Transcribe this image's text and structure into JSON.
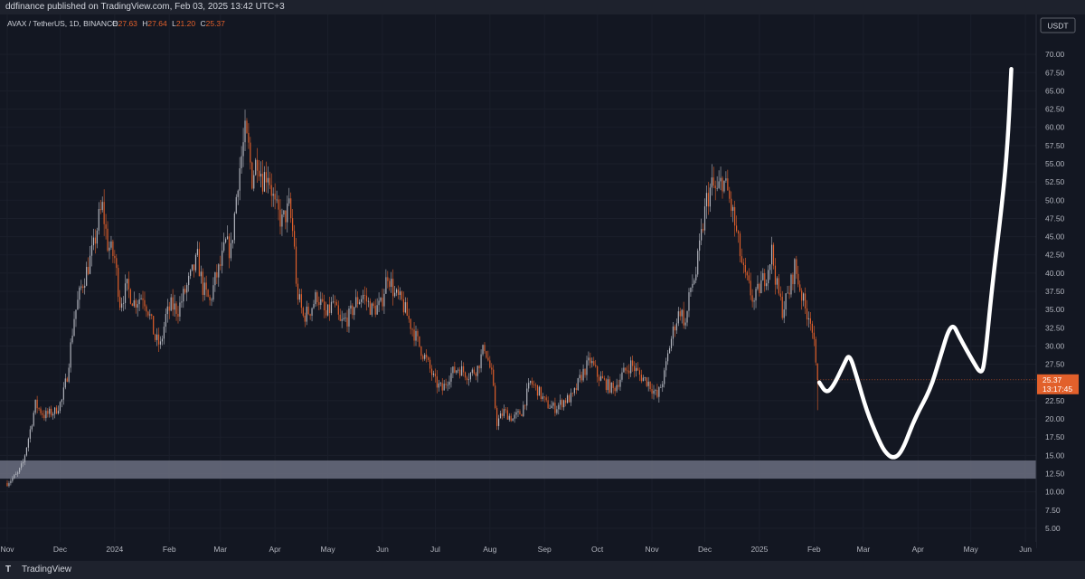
{
  "header": {
    "published": "ddfinance published on TradingView.com, Feb 03, 2025 13:42 UTC+3"
  },
  "legend": {
    "symbol": "AVAX / TetherUS, 1D, BINANCE",
    "o_label": "O",
    "o_value": "27.63",
    "h_label": "H",
    "h_value": "27.64",
    "l_label": "L",
    "l_value": "21.20",
    "c_label": "C",
    "c_value": "25.37"
  },
  "currency_button": "USDT",
  "price_tag": {
    "price": "25.37",
    "countdown": "13:17:45"
  },
  "footer": {
    "brand": "TradingView"
  },
  "colors": {
    "background": "#131722",
    "up": "#b2b5be",
    "down": "#e2602b",
    "zone": "#6b6e80",
    "drawing": "#ffffff",
    "price_tag": "#e2602b"
  },
  "chart_data": {
    "type": "candlestick",
    "symbol": "AVAX/USDT",
    "timeframe": "1D",
    "y_range": [
      3.5,
      72.5
    ],
    "y_ticks": [
      {
        "v": 70,
        "label": "70.00"
      },
      {
        "v": 67.5,
        "label": "67.50"
      },
      {
        "v": 65,
        "label": "65.00"
      },
      {
        "v": 62.5,
        "label": "62.50"
      },
      {
        "v": 60,
        "label": "60.00"
      },
      {
        "v": 57.5,
        "label": "57.50"
      },
      {
        "v": 55,
        "label": "55.00"
      },
      {
        "v": 52.5,
        "label": "52.50"
      },
      {
        "v": 50,
        "label": "50.00"
      },
      {
        "v": 47.5,
        "label": "47.50"
      },
      {
        "v": 45,
        "label": "45.00"
      },
      {
        "v": 42.5,
        "label": "42.50"
      },
      {
        "v": 40,
        "label": "40.00"
      },
      {
        "v": 37.5,
        "label": "37.50"
      },
      {
        "v": 35,
        "label": "35.00"
      },
      {
        "v": 32.5,
        "label": "32.50"
      },
      {
        "v": 30,
        "label": "30.00"
      },
      {
        "v": 27.5,
        "label": "27.50"
      },
      {
        "v": 25,
        "label": "25.00"
      },
      {
        "v": 22.5,
        "label": "22.50"
      },
      {
        "v": 20,
        "label": "20.00"
      },
      {
        "v": 17.5,
        "label": "17.50"
      },
      {
        "v": 15,
        "label": "15.00"
      },
      {
        "v": 12.5,
        "label": "12.50"
      },
      {
        "v": 10,
        "label": "10.00"
      },
      {
        "v": 7.5,
        "label": "7.50"
      },
      {
        "v": 5,
        "label": "5.00"
      }
    ],
    "x_range": [
      "2023-11-01",
      "2025-06-03"
    ],
    "x_ticks": [
      {
        "d": "2023-11-01",
        "label": "Nov"
      },
      {
        "d": "2023-12-01",
        "label": "Dec"
      },
      {
        "d": "2024-01-01",
        "label": "2024"
      },
      {
        "d": "2024-02-01",
        "label": "Feb"
      },
      {
        "d": "2024-03-01",
        "label": "Mar"
      },
      {
        "d": "2024-04-01",
        "label": "Apr"
      },
      {
        "d": "2024-05-01",
        "label": "May"
      },
      {
        "d": "2024-06-01",
        "label": "Jun"
      },
      {
        "d": "2024-07-01",
        "label": "Jul"
      },
      {
        "d": "2024-08-01",
        "label": "Aug"
      },
      {
        "d": "2024-09-01",
        "label": "Sep"
      },
      {
        "d": "2024-10-01",
        "label": "Oct"
      },
      {
        "d": "2024-11-01",
        "label": "Nov"
      },
      {
        "d": "2024-12-01",
        "label": "Dec"
      },
      {
        "d": "2025-01-01",
        "label": "2025"
      },
      {
        "d": "2025-02-01",
        "label": "Feb"
      },
      {
        "d": "2025-03-01",
        "label": "Mar"
      },
      {
        "d": "2025-04-01",
        "label": "Apr"
      },
      {
        "d": "2025-05-01",
        "label": "May"
      },
      {
        "d": "2025-06-01",
        "label": "Jun"
      }
    ],
    "close_path": [
      {
        "d": "2023-11-01",
        "c": 11.2
      },
      {
        "d": "2023-11-07",
        "c": 12.5
      },
      {
        "d": "2023-11-10",
        "c": 14.0
      },
      {
        "d": "2023-11-14",
        "c": 18.5
      },
      {
        "d": "2023-11-17",
        "c": 22.0
      },
      {
        "d": "2023-11-22",
        "c": 20.5
      },
      {
        "d": "2023-11-28",
        "c": 21.0
      },
      {
        "d": "2023-12-02",
        "c": 22.5
      },
      {
        "d": "2023-12-05",
        "c": 26.0
      },
      {
        "d": "2023-12-09",
        "c": 34.0
      },
      {
        "d": "2023-12-13",
        "c": 38.0
      },
      {
        "d": "2023-12-17",
        "c": 41.0
      },
      {
        "d": "2023-12-20",
        "c": 43.5
      },
      {
        "d": "2023-12-23",
        "c": 47.5
      },
      {
        "d": "2023-12-25",
        "c": 49.0
      },
      {
        "d": "2023-12-28",
        "c": 44.0
      },
      {
        "d": "2024-01-01",
        "c": 42.0
      },
      {
        "d": "2024-01-04",
        "c": 36.0
      },
      {
        "d": "2024-01-08",
        "c": 38.0
      },
      {
        "d": "2024-01-12",
        "c": 36.0
      },
      {
        "d": "2024-01-17",
        "c": 37.0
      },
      {
        "d": "2024-01-20",
        "c": 35.0
      },
      {
        "d": "2024-01-24",
        "c": 31.0
      },
      {
        "d": "2024-01-27",
        "c": 30.0
      },
      {
        "d": "2024-01-30",
        "c": 34.0
      },
      {
        "d": "2024-02-02",
        "c": 35.5
      },
      {
        "d": "2024-02-06",
        "c": 35.0
      },
      {
        "d": "2024-02-10",
        "c": 37.5
      },
      {
        "d": "2024-02-14",
        "c": 40.0
      },
      {
        "d": "2024-02-17",
        "c": 42.0
      },
      {
        "d": "2024-02-20",
        "c": 38.0
      },
      {
        "d": "2024-02-24",
        "c": 36.0
      },
      {
        "d": "2024-02-27",
        "c": 39.0
      },
      {
        "d": "2024-03-01",
        "c": 41.0
      },
      {
        "d": "2024-03-04",
        "c": 44.0
      },
      {
        "d": "2024-03-07",
        "c": 43.0
      },
      {
        "d": "2024-03-09",
        "c": 48.0
      },
      {
        "d": "2024-03-11",
        "c": 53.0
      },
      {
        "d": "2024-03-13",
        "c": 56.0
      },
      {
        "d": "2024-03-15",
        "c": 59.0
      },
      {
        "d": "2024-03-17",
        "c": 57.0
      },
      {
        "d": "2024-03-19",
        "c": 53.0
      },
      {
        "d": "2024-03-22",
        "c": 56.0
      },
      {
        "d": "2024-03-25",
        "c": 53.0
      },
      {
        "d": "2024-03-28",
        "c": 54.0
      },
      {
        "d": "2024-04-01",
        "c": 49.0
      },
      {
        "d": "2024-04-05",
        "c": 47.0
      },
      {
        "d": "2024-04-09",
        "c": 49.0
      },
      {
        "d": "2024-04-12",
        "c": 44.0
      },
      {
        "d": "2024-04-13",
        "c": 38.0
      },
      {
        "d": "2024-04-17",
        "c": 34.0
      },
      {
        "d": "2024-04-21",
        "c": 35.0
      },
      {
        "d": "2024-04-25",
        "c": 37.0
      },
      {
        "d": "2024-04-30",
        "c": 34.0
      },
      {
        "d": "2024-05-04",
        "c": 36.0
      },
      {
        "d": "2024-05-08",
        "c": 33.0
      },
      {
        "d": "2024-05-13",
        "c": 34.0
      },
      {
        "d": "2024-05-17",
        "c": 36.0
      },
      {
        "d": "2024-05-21",
        "c": 37.0
      },
      {
        "d": "2024-05-26",
        "c": 35.0
      },
      {
        "d": "2024-05-31",
        "c": 35.5
      },
      {
        "d": "2024-06-04",
        "c": 40.0
      },
      {
        "d": "2024-06-08",
        "c": 37.0
      },
      {
        "d": "2024-06-12",
        "c": 36.0
      },
      {
        "d": "2024-06-17",
        "c": 33.0
      },
      {
        "d": "2024-06-22",
        "c": 30.0
      },
      {
        "d": "2024-06-26",
        "c": 28.0
      },
      {
        "d": "2024-07-01",
        "c": 25.0
      },
      {
        "d": "2024-07-05",
        "c": 24.0
      },
      {
        "d": "2024-07-09",
        "c": 26.0
      },
      {
        "d": "2024-07-14",
        "c": 27.0
      },
      {
        "d": "2024-07-20",
        "c": 26.0
      },
      {
        "d": "2024-07-25",
        "c": 27.0
      },
      {
        "d": "2024-07-29",
        "c": 30.0
      },
      {
        "d": "2024-08-02",
        "c": 26.0
      },
      {
        "d": "2024-08-05",
        "c": 19.5
      },
      {
        "d": "2024-08-09",
        "c": 21.0
      },
      {
        "d": "2024-08-14",
        "c": 20.0
      },
      {
        "d": "2024-08-19",
        "c": 21.0
      },
      {
        "d": "2024-08-24",
        "c": 25.0
      },
      {
        "d": "2024-08-28",
        "c": 24.0
      },
      {
        "d": "2024-09-02",
        "c": 22.0
      },
      {
        "d": "2024-09-07",
        "c": 21.5
      },
      {
        "d": "2024-09-12",
        "c": 22.5
      },
      {
        "d": "2024-09-17",
        "c": 23.0
      },
      {
        "d": "2024-09-22",
        "c": 26.0
      },
      {
        "d": "2024-09-27",
        "c": 28.0
      },
      {
        "d": "2024-10-01",
        "c": 26.0
      },
      {
        "d": "2024-10-05",
        "c": 25.0
      },
      {
        "d": "2024-10-10",
        "c": 24.0
      },
      {
        "d": "2024-10-15",
        "c": 26.0
      },
      {
        "d": "2024-10-20",
        "c": 27.5
      },
      {
        "d": "2024-10-25",
        "c": 26.0
      },
      {
        "d": "2024-10-30",
        "c": 25.0
      },
      {
        "d": "2024-11-04",
        "c": 23.0
      },
      {
        "d": "2024-11-08",
        "c": 26.0
      },
      {
        "d": "2024-11-11",
        "c": 30.0
      },
      {
        "d": "2024-11-14",
        "c": 33.0
      },
      {
        "d": "2024-11-17",
        "c": 35.0
      },
      {
        "d": "2024-11-20",
        "c": 33.0
      },
      {
        "d": "2024-11-23",
        "c": 38.0
      },
      {
        "d": "2024-11-26",
        "c": 40.0
      },
      {
        "d": "2024-11-29",
        "c": 45.0
      },
      {
        "d": "2024-12-02",
        "c": 50.0
      },
      {
        "d": "2024-12-05",
        "c": 52.0
      },
      {
        "d": "2024-12-08",
        "c": 51.0
      },
      {
        "d": "2024-12-11",
        "c": 53.0
      },
      {
        "d": "2024-12-14",
        "c": 51.0
      },
      {
        "d": "2024-12-17",
        "c": 48.0
      },
      {
        "d": "2024-12-20",
        "c": 44.0
      },
      {
        "d": "2024-12-23",
        "c": 40.0
      },
      {
        "d": "2024-12-26",
        "c": 38.0
      },
      {
        "d": "2024-12-29",
        "c": 36.0
      },
      {
        "d": "2025-01-01",
        "c": 38.0
      },
      {
        "d": "2025-01-05",
        "c": 40.0
      },
      {
        "d": "2025-01-08",
        "c": 43.0
      },
      {
        "d": "2025-01-11",
        "c": 38.0
      },
      {
        "d": "2025-01-14",
        "c": 35.0
      },
      {
        "d": "2025-01-18",
        "c": 37.5
      },
      {
        "d": "2025-01-21",
        "c": 41.0
      },
      {
        "d": "2025-01-24",
        "c": 38.0
      },
      {
        "d": "2025-01-27",
        "c": 35.0
      },
      {
        "d": "2025-01-30",
        "c": 34.0
      },
      {
        "d": "2025-02-01",
        "c": 30.0
      },
      {
        "d": "2025-02-02",
        "c": 27.0
      },
      {
        "d": "2025-02-03",
        "c": 25.37
      }
    ],
    "last_ohlc": {
      "o": 27.63,
      "h": 27.64,
      "l": 21.2,
      "c": 25.37
    },
    "support_zone": [
      11.8,
      14.3
    ],
    "projection_path": [
      {
        "d": "2025-02-04",
        "p": 25.0
      },
      {
        "d": "2025-02-08",
        "p": 23.5
      },
      {
        "d": "2025-02-12",
        "p": 24.5
      },
      {
        "d": "2025-02-18",
        "p": 27.5
      },
      {
        "d": "2025-02-21",
        "p": 29.0
      },
      {
        "d": "2025-02-25",
        "p": 26.0
      },
      {
        "d": "2025-03-03",
        "p": 21.0
      },
      {
        "d": "2025-03-09",
        "p": 17.5
      },
      {
        "d": "2025-03-13",
        "p": 15.5
      },
      {
        "d": "2025-03-18",
        "p": 14.5
      },
      {
        "d": "2025-03-23",
        "p": 15.5
      },
      {
        "d": "2025-03-30",
        "p": 20.0
      },
      {
        "d": "2025-04-08",
        "p": 24.0
      },
      {
        "d": "2025-04-13",
        "p": 28.0
      },
      {
        "d": "2025-04-20",
        "p": 33.5
      },
      {
        "d": "2025-04-25",
        "p": 31.0
      },
      {
        "d": "2025-05-02",
        "p": 28.0
      },
      {
        "d": "2025-05-07",
        "p": 26.0
      },
      {
        "d": "2025-05-09",
        "p": 28.0
      },
      {
        "d": "2025-05-13",
        "p": 38.0
      },
      {
        "d": "2025-05-19",
        "p": 50.0
      },
      {
        "d": "2025-05-22",
        "p": 58.0
      },
      {
        "d": "2025-05-24",
        "p": 68.0
      }
    ]
  }
}
